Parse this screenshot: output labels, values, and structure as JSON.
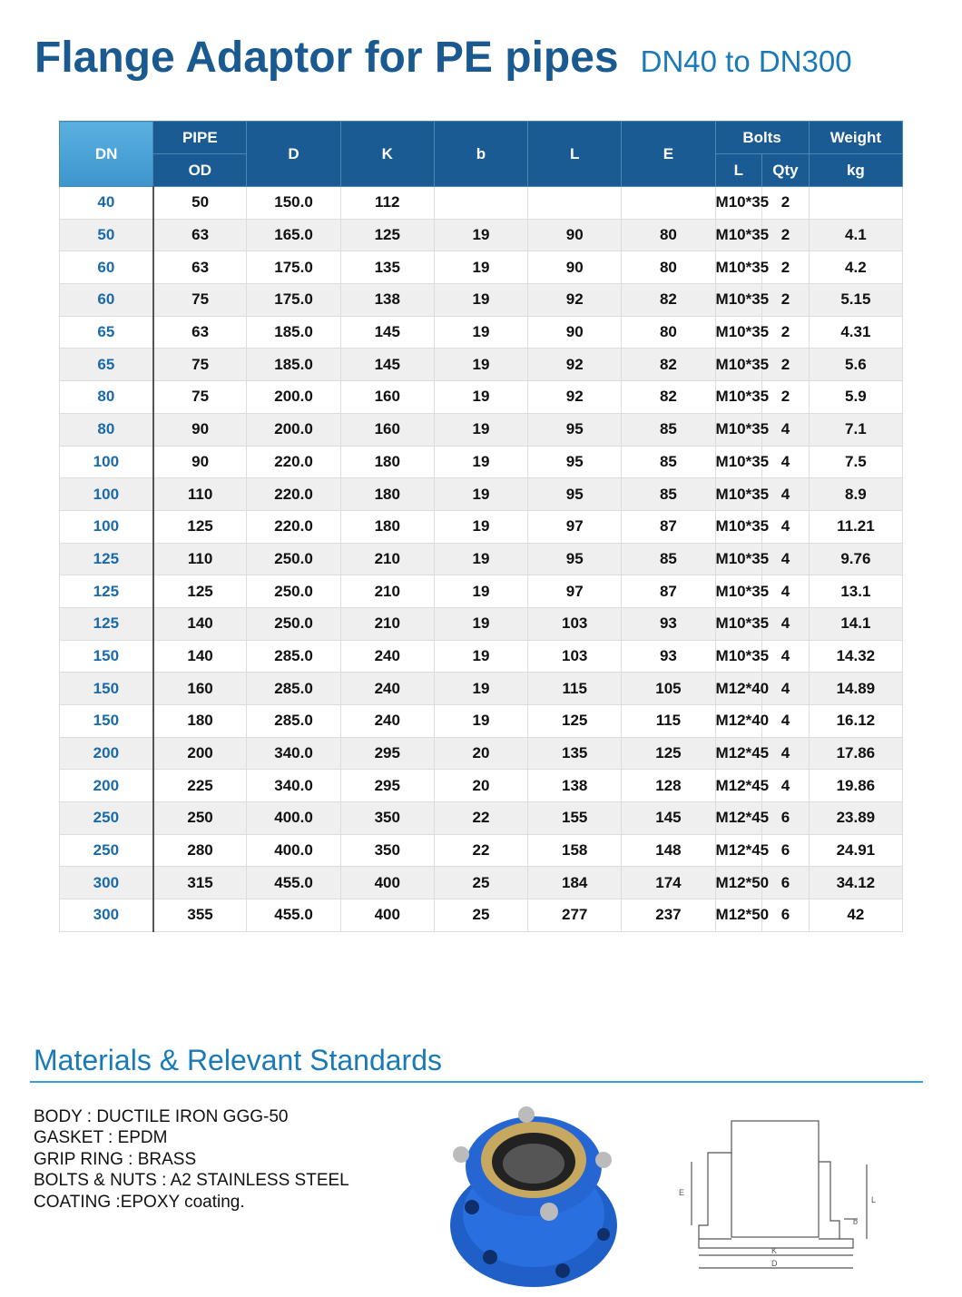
{
  "header": {
    "title": "Flange Adaptor for PE pipes",
    "subtitle": "DN40 to DN300"
  },
  "table": {
    "head": {
      "dn": "DN",
      "pipe": "PIPE",
      "od": "OD",
      "d": "D",
      "k": "K",
      "b": "b",
      "l": "L",
      "e": "E",
      "bolts": "Bolts",
      "bolts_l": "L",
      "qty": "Qty",
      "weight": "Weight",
      "kg": "kg"
    },
    "rows": [
      [
        "40",
        "50",
        "150.0",
        "112",
        null,
        null,
        null,
        "M10*35",
        "2",
        null
      ],
      [
        "50",
        "63",
        "165.0",
        "125",
        "19",
        "90",
        "80",
        "M10*35",
        "2",
        "4.1"
      ],
      [
        "60",
        "63",
        "175.0",
        "135",
        "19",
        "90",
        "80",
        "M10*35",
        "2",
        "4.2"
      ],
      [
        "60",
        "75",
        "175.0",
        "138",
        "19",
        "92",
        "82",
        "M10*35",
        "2",
        "5.15"
      ],
      [
        "65",
        "63",
        "185.0",
        "145",
        "19",
        "90",
        "80",
        "M10*35",
        "2",
        "4.31"
      ],
      [
        "65",
        "75",
        "185.0",
        "145",
        "19",
        "92",
        "82",
        "M10*35",
        "2",
        "5.6"
      ],
      [
        "80",
        "75",
        "200.0",
        "160",
        "19",
        "92",
        "82",
        "M10*35",
        "2",
        "5.9"
      ],
      [
        "80",
        "90",
        "200.0",
        "160",
        "19",
        "95",
        "85",
        "M10*35",
        "4",
        "7.1"
      ],
      [
        "100",
        "90",
        "220.0",
        "180",
        "19",
        "95",
        "85",
        "M10*35",
        "4",
        "7.5"
      ],
      [
        "100",
        "110",
        "220.0",
        "180",
        "19",
        "95",
        "85",
        "M10*35",
        "4",
        "8.9"
      ],
      [
        "100",
        "125",
        "220.0",
        "180",
        "19",
        "97",
        "87",
        "M10*35",
        "4",
        "11.21"
      ],
      [
        "125",
        "110",
        "250.0",
        "210",
        "19",
        "95",
        "85",
        "M10*35",
        "4",
        "9.76"
      ],
      [
        "125",
        "125",
        "250.0",
        "210",
        "19",
        "97",
        "87",
        "M10*35",
        "4",
        "13.1"
      ],
      [
        "125",
        "140",
        "250.0",
        "210",
        "19",
        "103",
        "93",
        "M10*35",
        "4",
        "14.1"
      ],
      [
        "150",
        "140",
        "285.0",
        "240",
        "19",
        "103",
        "93",
        "M10*35",
        "4",
        "14.32"
      ],
      [
        "150",
        "160",
        "285.0",
        "240",
        "19",
        "115",
        "105",
        "M12*40",
        "4",
        "14.89"
      ],
      [
        "150",
        "180",
        "285.0",
        "240",
        "19",
        "125",
        "115",
        "M12*40",
        "4",
        "16.12"
      ],
      [
        "200",
        "200",
        "340.0",
        "295",
        "20",
        "135",
        "125",
        "M12*45",
        "4",
        "17.86"
      ],
      [
        "200",
        "225",
        "340.0",
        "295",
        "20",
        "138",
        "128",
        "M12*45",
        "4",
        "19.86"
      ],
      [
        "250",
        "250",
        "400.0",
        "350",
        "22",
        "155",
        "145",
        "M12*45",
        "6",
        "23.89"
      ],
      [
        "250",
        "280",
        "400.0",
        "350",
        "22",
        "158",
        "148",
        "M12*45",
        "6",
        "24.91"
      ],
      [
        "300",
        "315",
        "455.0",
        "400",
        "25",
        "184",
        "174",
        "M12*50",
        "6",
        "34.12"
      ],
      [
        "300",
        "355",
        "455.0",
        "400",
        "25",
        "277",
        "237",
        "M12*50",
        "6",
        "42"
      ]
    ]
  },
  "materials": {
    "title": "Materials & Relevant Standards",
    "items": [
      "BODY : DUCTILE IRON GGG-50",
      "GASKET : EPDM",
      "GRIP RING : BRASS",
      "BOLTS & NUTS : A2 STAINLESS STEEL",
      "COATING :EPOXY coating."
    ]
  },
  "drawing": {
    "labels": {
      "e": "E",
      "l": "L",
      "b": "b",
      "k": "K",
      "d": "D"
    }
  }
}
